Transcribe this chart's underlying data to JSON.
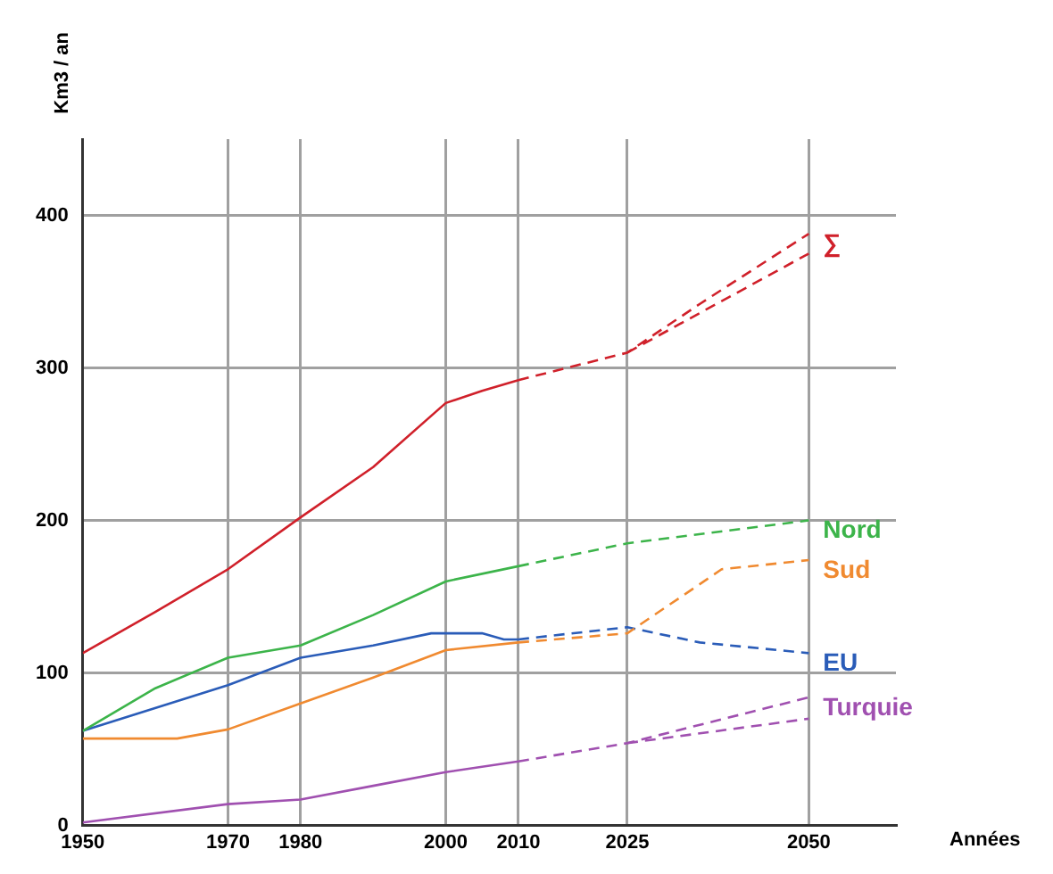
{
  "chart_data": {
    "type": "line",
    "xlabel": "Années",
    "ylabel": "Km3 / an",
    "xlim": [
      1950,
      2062
    ],
    "ylim": [
      0,
      450
    ],
    "xticks": [
      1950,
      1970,
      1980,
      2000,
      2010,
      2025,
      2050
    ],
    "yticks": [
      0,
      100,
      200,
      300,
      400
    ],
    "grid": true,
    "legend": false,
    "marker": "none",
    "series": [
      {
        "color": "#d0202a",
        "line_style": "solid",
        "x": [
          1950,
          1960,
          1970,
          1980,
          1990,
          2000,
          2005,
          2010
        ],
        "values": [
          113,
          140,
          168,
          202,
          235,
          277,
          285,
          292
        ]
      },
      {
        "name": "∑",
        "color": "#d0202a",
        "line_style": "dashed",
        "x": [
          2010,
          2025,
          2035,
          2050
        ],
        "values": [
          292,
          310,
          342,
          388
        ]
      },
      {
        "color": "#d0202a",
        "line_style": "dashed",
        "x": [
          2025,
          2035,
          2050
        ],
        "values": [
          310,
          336,
          375
        ]
      },
      {
        "color": "#3cb44a",
        "line_style": "solid",
        "x": [
          1950,
          1960,
          1970,
          1980,
          1990,
          2000,
          2010
        ],
        "values": [
          62,
          90,
          110,
          118,
          138,
          160,
          170
        ]
      },
      {
        "name": "Nord",
        "color": "#3cb44a",
        "line_style": "dashed",
        "x": [
          2010,
          2025,
          2050
        ],
        "values": [
          170,
          185,
          200
        ]
      },
      {
        "color": "#f08a30",
        "line_style": "solid",
        "x": [
          1950,
          1963,
          1970,
          1980,
          1990,
          2000,
          2010
        ],
        "values": [
          57,
          57,
          63,
          80,
          97,
          115,
          120
        ]
      },
      {
        "name": "Sud",
        "color": "#f08a30",
        "line_style": "dashed",
        "x": [
          2010,
          2025,
          2038,
          2050
        ],
        "values": [
          120,
          126,
          168,
          174
        ]
      },
      {
        "color": "#2a5cb8",
        "line_style": "solid",
        "x": [
          1950,
          1970,
          1980,
          1990,
          1998,
          2005,
          2008,
          2010
        ],
        "values": [
          62,
          92,
          110,
          118,
          126,
          126,
          122,
          122
        ]
      },
      {
        "name": "EU",
        "color": "#2a5cb8",
        "line_style": "dashed",
        "x": [
          2010,
          2025,
          2035,
          2050
        ],
        "values": [
          122,
          130,
          120,
          113
        ]
      },
      {
        "color": "#a050b0",
        "line_style": "solid",
        "x": [
          1950,
          1970,
          1980,
          1990,
          2000,
          2010
        ],
        "values": [
          2,
          14,
          17,
          26,
          35,
          42
        ]
      },
      {
        "name": "Turquie",
        "color": "#a050b0",
        "line_style": "dashed",
        "x": [
          2010,
          2025,
          2050
        ],
        "values": [
          42,
          54,
          84
        ]
      },
      {
        "color": "#a050b0",
        "line_style": "dashed",
        "x": [
          2025,
          2050
        ],
        "values": [
          54,
          70
        ]
      }
    ]
  }
}
